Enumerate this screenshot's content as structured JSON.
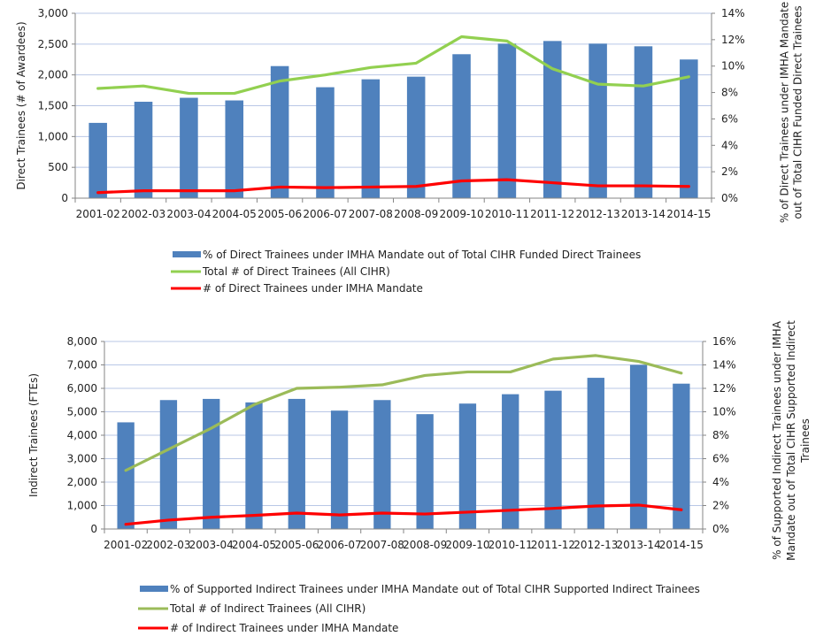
{
  "chart_data": [
    {
      "type": "bar",
      "id": "direct",
      "categories": [
        "2001-02",
        "2002-03",
        "2003-04",
        "2004-05",
        "2005-06",
        "2006-07",
        "2007-08",
        "2008-09",
        "2009-10",
        "2010-11",
        "2011-12",
        "2012-13",
        "2013-14",
        "2014-15"
      ],
      "ylabel": "Direct Trainees (# of Awardees)",
      "y2label_lines": [
        "% of Direct Trainees under IMHA Mandate",
        "out of  Total CIHR Funded Direct Trainees"
      ],
      "ylim": [
        0,
        3000
      ],
      "yticks": [
        "0",
        "500",
        "1,000",
        "1,500",
        "2,000",
        "2,500",
        "3,000"
      ],
      "y2lim": [
        0,
        14
      ],
      "y2ticks": [
        "0%",
        "2%",
        "4%",
        "6%",
        "8%",
        "10%",
        "12%",
        "14%"
      ],
      "grid": true,
      "legend_position": "bottom",
      "series": [
        {
          "name": "% of Direct Trainees under IMHA Mandate out of Total CIHR Funded Direct Trainees",
          "kind": "bar",
          "axis": "right",
          "color": "#4F81BD",
          "values": [
            5.7,
            7.3,
            7.6,
            7.4,
            10.0,
            8.4,
            9.0,
            9.2,
            10.9,
            11.7,
            11.9,
            11.7,
            11.5,
            10.5
          ]
        },
        {
          "name": "Total # of Direct Trainees (All CIHR)",
          "kind": "line",
          "axis": "left",
          "color": "#92D050",
          "values": [
            1780,
            1820,
            1700,
            1700,
            1900,
            2000,
            2120,
            2190,
            2620,
            2550,
            2100,
            1850,
            1820,
            1970
          ]
        },
        {
          "name": "# of Direct Trainees under IMHA Mandate",
          "kind": "line",
          "axis": "left",
          "color": "#FF0000",
          "values": [
            90,
            120,
            120,
            120,
            180,
            170,
            180,
            190,
            280,
            300,
            250,
            200,
            200,
            190
          ]
        }
      ]
    },
    {
      "type": "bar",
      "id": "indirect",
      "categories": [
        "2001-02",
        "2002-03",
        "2003-04",
        "2004-05",
        "2005-06",
        "2006-07",
        "2007-08",
        "2008-09",
        "2009-10",
        "2010-11",
        "2011-12",
        "2012-13",
        "2013-14",
        "2014-15"
      ],
      "ylabel": "Indirect Trainees (FTEs)",
      "y2label_lines": [
        "% of Supported Indirect Trainees under IMHA",
        "Mandate out of Total CIHR Supported Indirect",
        "Trainees"
      ],
      "ylim": [
        0,
        8000
      ],
      "yticks": [
        "0",
        "1,000",
        "2,000",
        "3,000",
        "4,000",
        "5,000",
        "6,000",
        "7,000",
        "8,000"
      ],
      "y2lim": [
        0,
        16
      ],
      "y2ticks": [
        "0%",
        "2%",
        "4%",
        "6%",
        "8%",
        "10%",
        "12%",
        "14%",
        "16%"
      ],
      "grid": true,
      "legend_position": "bottom",
      "series": [
        {
          "name": "% of Supported Indirect Trainees under IMHA Mandate out of Total CIHR Supported Indirect Trainees",
          "kind": "bar",
          "axis": "right",
          "color": "#4F81BD",
          "values": [
            9.1,
            11.0,
            11.1,
            10.8,
            11.1,
            10.1,
            11.0,
            9.8,
            10.7,
            11.5,
            11.8,
            12.9,
            14.0,
            12.4
          ]
        },
        {
          "name": "Total # of Indirect Trainees (All CIHR)",
          "kind": "line",
          "axis": "left",
          "color": "#9BBB59",
          "values": [
            2500,
            3400,
            4300,
            5300,
            6000,
            6050,
            6150,
            6550,
            6700,
            6700,
            7250,
            7400,
            7150,
            6650
          ]
        },
        {
          "name": "# of Indirect Trainees under IMHA Mandate",
          "kind": "line",
          "axis": "left",
          "color": "#FF0000",
          "values": [
            200,
            380,
            500,
            580,
            680,
            600,
            680,
            640,
            720,
            800,
            880,
            980,
            1020,
            820
          ]
        }
      ]
    }
  ]
}
